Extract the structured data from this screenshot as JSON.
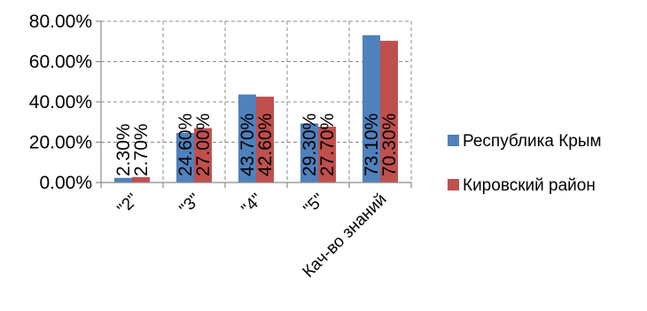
{
  "chart_data": {
    "type": "bar",
    "title": "",
    "xlabel": "",
    "ylabel": "",
    "categories": [
      "\"2\"",
      "\"3\"",
      "\"4\"",
      "\"5\"",
      "Кач-во знаний"
    ],
    "series": [
      {
        "name": "Республика Крым",
        "color": "#4f81bd",
        "values": [
          2.3,
          24.6,
          43.7,
          29.3,
          73.1
        ],
        "labels": [
          "2.30%",
          "24.60%",
          "43.70%",
          "29.30%",
          "73.10%"
        ]
      },
      {
        "name": "Кировский район",
        "color": "#c0504d",
        "values": [
          2.7,
          27.0,
          42.6,
          27.7,
          70.3
        ],
        "labels": [
          "2.70%",
          "27.00%",
          "42.60%",
          "27.70%",
          "70.30%"
        ]
      }
    ],
    "ylim": [
      0,
      80
    ],
    "yticks": [
      0,
      20,
      40,
      60,
      80
    ],
    "ytick_labels": [
      "0.00%",
      "20.00%",
      "40.00%",
      "60.00%",
      "80.00%"
    ],
    "grid": true,
    "legend": "right"
  }
}
